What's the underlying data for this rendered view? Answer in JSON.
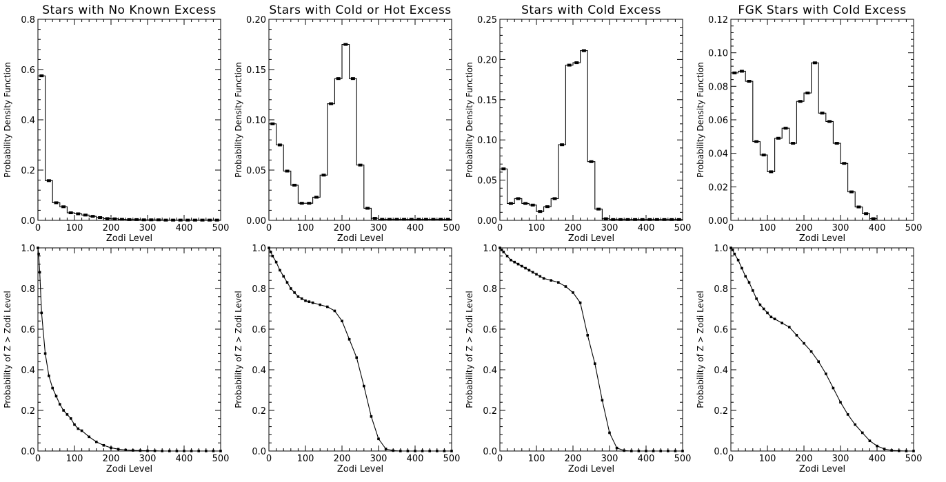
{
  "chart_data": [
    {
      "type": "histogram-step",
      "title": "Stars with No Known Excess",
      "xlabel": "Zodi Level",
      "ylabel": "Probability Density Function",
      "xlim": [
        0,
        500
      ],
      "ylim": [
        0,
        0.8
      ],
      "xticks": [
        "0",
        "100",
        "200",
        "300",
        "400",
        "500"
      ],
      "yticks": [
        "0.0",
        "0.2",
        "0.4",
        "0.6",
        "0.8"
      ],
      "bin_width": 20,
      "values": [
        0.575,
        0.158,
        0.07,
        0.054,
        0.03,
        0.026,
        0.021,
        0.016,
        0.011,
        0.007,
        0.006,
        0.004,
        0.003,
        0.003,
        0.002,
        0.002,
        0.002,
        0.001,
        0.001,
        0.001,
        0.001,
        0.001,
        0.001,
        0.001,
        0.001
      ]
    },
    {
      "type": "histogram-step",
      "title": "Stars with Cold or Hot Excess",
      "xlabel": "Zodi Level",
      "ylabel": "Probability Density Function",
      "xlim": [
        0,
        500
      ],
      "ylim": [
        0,
        0.2
      ],
      "xticks": [
        "0",
        "100",
        "200",
        "300",
        "400",
        "500"
      ],
      "yticks": [
        "0.00",
        "0.05",
        "0.10",
        "0.15",
        "0.20"
      ],
      "bin_width": 20,
      "values": [
        0.096,
        0.075,
        0.049,
        0.035,
        0.017,
        0.017,
        0.023,
        0.045,
        0.116,
        0.141,
        0.175,
        0.141,
        0.055,
        0.012,
        0.002,
        0.001,
        0.001,
        0.001,
        0.001,
        0.001,
        0.001,
        0.001,
        0.001,
        0.001,
        0.001
      ]
    },
    {
      "type": "histogram-step",
      "title": "Stars with Cold Excess",
      "xlabel": "Zodi Level",
      "ylabel": "Probability Density Function",
      "xlim": [
        0,
        500
      ],
      "ylim": [
        0,
        0.25
      ],
      "xticks": [
        "0",
        "100",
        "200",
        "300",
        "400",
        "500"
      ],
      "yticks": [
        "0.00",
        "0.05",
        "0.10",
        "0.15",
        "0.20",
        "0.25"
      ],
      "bin_width": 20,
      "values": [
        0.064,
        0.021,
        0.027,
        0.021,
        0.019,
        0.011,
        0.017,
        0.027,
        0.094,
        0.193,
        0.196,
        0.211,
        0.073,
        0.014,
        0.002,
        0.001,
        0.001,
        0.001,
        0.001,
        0.001,
        0.001,
        0.001,
        0.001,
        0.001,
        0.001
      ]
    },
    {
      "type": "histogram-step",
      "title": "FGK Stars with Cold Excess",
      "xlabel": "Zodi Level",
      "ylabel": "Probability Density Function",
      "xlim": [
        0,
        500
      ],
      "ylim": [
        0,
        0.12
      ],
      "xticks": [
        "0",
        "100",
        "200",
        "300",
        "400",
        "500"
      ],
      "yticks": [
        "0.00",
        "0.02",
        "0.04",
        "0.06",
        "0.08",
        "0.10",
        "0.12"
      ],
      "bin_width": 20,
      "values": [
        0.088,
        0.089,
        0.083,
        0.047,
        0.039,
        0.029,
        0.049,
        0.055,
        0.046,
        0.071,
        0.076,
        0.094,
        0.064,
        0.059,
        0.046,
        0.034,
        0.017,
        0.008,
        0.004,
        0.001
      ]
    },
    {
      "type": "line",
      "title": "",
      "xlabel": "Zodi Level",
      "ylabel": "Probability of Z > Zodi Level",
      "xlim": [
        0,
        500
      ],
      "ylim": [
        0,
        1.0
      ],
      "xticks": [
        "0",
        "100",
        "200",
        "300",
        "400",
        "500"
      ],
      "yticks": [
        "0.0",
        "0.2",
        "0.4",
        "0.6",
        "0.8",
        "1.0"
      ],
      "x": [
        0,
        2,
        5,
        10,
        20,
        30,
        40,
        50,
        60,
        70,
        80,
        90,
        100,
        110,
        120,
        140,
        160,
        180,
        200,
        220,
        240,
        260,
        280,
        300,
        320,
        340,
        360,
        380,
        400,
        420,
        440,
        460,
        480,
        500
      ],
      "y": [
        1.0,
        0.97,
        0.88,
        0.68,
        0.48,
        0.37,
        0.31,
        0.27,
        0.23,
        0.2,
        0.18,
        0.16,
        0.13,
        0.11,
        0.1,
        0.07,
        0.045,
        0.028,
        0.016,
        0.009,
        0.005,
        0.003,
        0.002,
        0.001,
        0.001,
        0.0,
        0.0,
        0.0,
        0.0,
        0.0,
        0.0,
        0.0,
        0.0,
        0.0
      ]
    },
    {
      "type": "line",
      "title": "",
      "xlabel": "Zodi Level",
      "ylabel": "Probability of Z > Zodi Level",
      "xlim": [
        0,
        500
      ],
      "ylim": [
        0,
        1.0
      ],
      "xticks": [
        "0",
        "100",
        "200",
        "300",
        "400",
        "500"
      ],
      "yticks": [
        "0.0",
        "0.2",
        "0.4",
        "0.6",
        "0.8",
        "1.0"
      ],
      "x": [
        0,
        5,
        10,
        20,
        30,
        40,
        50,
        60,
        70,
        80,
        90,
        100,
        110,
        120,
        140,
        160,
        180,
        200,
        220,
        240,
        260,
        280,
        300,
        320,
        340,
        360,
        380,
        400,
        420,
        440,
        460,
        480,
        500
      ],
      "y": [
        1.0,
        0.98,
        0.96,
        0.93,
        0.89,
        0.86,
        0.83,
        0.8,
        0.78,
        0.76,
        0.75,
        0.74,
        0.735,
        0.73,
        0.72,
        0.71,
        0.69,
        0.64,
        0.55,
        0.46,
        0.32,
        0.17,
        0.06,
        0.01,
        0.002,
        0.0,
        0.0,
        0.0,
        0.0,
        0.0,
        0.0,
        0.0,
        0.0
      ]
    },
    {
      "type": "line",
      "title": "",
      "xlabel": "Zodi Level",
      "ylabel": "Probability of Z > Zodi Level",
      "xlim": [
        0,
        500
      ],
      "ylim": [
        0,
        1.0
      ],
      "xticks": [
        "0",
        "100",
        "200",
        "300",
        "400",
        "500"
      ],
      "yticks": [
        "0.0",
        "0.2",
        "0.4",
        "0.6",
        "0.8",
        "1.0"
      ],
      "x": [
        0,
        5,
        10,
        20,
        30,
        40,
        50,
        60,
        70,
        80,
        90,
        100,
        110,
        120,
        140,
        160,
        180,
        200,
        220,
        240,
        260,
        280,
        300,
        320,
        340,
        360,
        380,
        400,
        420,
        440,
        460,
        480,
        500
      ],
      "y": [
        1.0,
        0.99,
        0.98,
        0.96,
        0.94,
        0.93,
        0.92,
        0.91,
        0.9,
        0.89,
        0.88,
        0.87,
        0.86,
        0.85,
        0.84,
        0.83,
        0.81,
        0.78,
        0.73,
        0.57,
        0.43,
        0.25,
        0.09,
        0.015,
        0.002,
        0.0,
        0.0,
        0.0,
        0.0,
        0.0,
        0.0,
        0.0,
        0.0
      ]
    },
    {
      "type": "line",
      "title": "",
      "xlabel": "Zodi Level",
      "ylabel": "Probability of Z > Zodi Level",
      "xlim": [
        0,
        500
      ],
      "ylim": [
        0,
        1.0
      ],
      "xticks": [
        "0",
        "100",
        "200",
        "300",
        "400",
        "500"
      ],
      "yticks": [
        "0.0",
        "0.2",
        "0.4",
        "0.6",
        "0.8",
        "1.0"
      ],
      "x": [
        0,
        5,
        10,
        20,
        30,
        40,
        50,
        60,
        70,
        80,
        90,
        100,
        110,
        120,
        140,
        160,
        180,
        200,
        220,
        240,
        260,
        280,
        300,
        320,
        340,
        360,
        380,
        400,
        420,
        440,
        460,
        480,
        500
      ],
      "y": [
        1.0,
        0.99,
        0.97,
        0.94,
        0.9,
        0.86,
        0.83,
        0.79,
        0.75,
        0.72,
        0.7,
        0.68,
        0.66,
        0.65,
        0.63,
        0.61,
        0.57,
        0.53,
        0.49,
        0.44,
        0.38,
        0.31,
        0.24,
        0.18,
        0.13,
        0.09,
        0.05,
        0.025,
        0.01,
        0.003,
        0.001,
        0.0,
        0.0
      ]
    }
  ]
}
